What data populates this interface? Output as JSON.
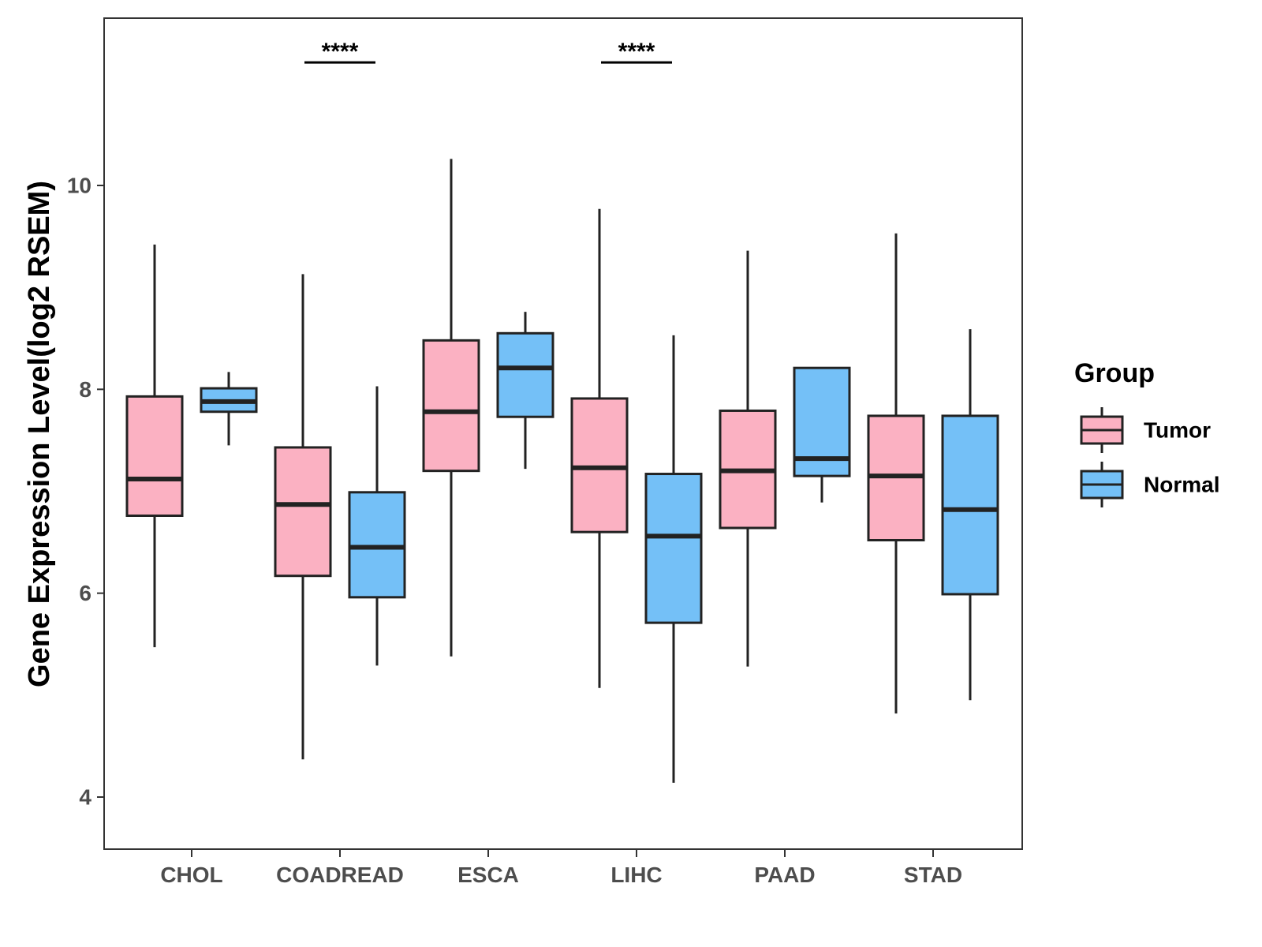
{
  "chart_data": {
    "type": "boxplot",
    "title": "",
    "xlabel": "",
    "ylabel": "Gene Expression Level(log2 RSEM)",
    "ylim": [
      3.5,
      11.7
    ],
    "yticks": [
      4,
      6,
      8,
      10
    ],
    "ytick_labels": [
      "4",
      "6",
      "8",
      "10"
    ],
    "categories": [
      "CHOL",
      "COADREAD",
      "ESCA",
      "LIHC",
      "PAAD",
      "STAD"
    ],
    "legend": {
      "title": "Group",
      "position": "right",
      "entries": [
        "Tumor",
        "Normal"
      ]
    },
    "series": [
      {
        "name": "Tumor",
        "color": "#FBB1C2",
        "boxes": [
          {
            "category": "CHOL",
            "whisker_low": 5.47,
            "q1": 6.76,
            "median": 7.12,
            "q3": 7.93,
            "whisker_high": 9.42
          },
          {
            "category": "COADREAD",
            "whisker_low": 4.37,
            "q1": 6.17,
            "median": 6.87,
            "q3": 7.43,
            "whisker_high": 9.13
          },
          {
            "category": "ESCA",
            "whisker_low": 5.38,
            "q1": 7.2,
            "median": 7.78,
            "q3": 8.48,
            "whisker_high": 10.26
          },
          {
            "category": "LIHC",
            "whisker_low": 5.07,
            "q1": 6.6,
            "median": 7.23,
            "q3": 7.91,
            "whisker_high": 9.77
          },
          {
            "category": "PAAD",
            "whisker_low": 5.28,
            "q1": 6.64,
            "median": 7.2,
            "q3": 7.79,
            "whisker_high": 9.36
          },
          {
            "category": "STAD",
            "whisker_low": 4.82,
            "q1": 6.52,
            "median": 7.15,
            "q3": 7.74,
            "whisker_high": 9.53
          }
        ]
      },
      {
        "name": "Normal",
        "color": "#74C0F7",
        "boxes": [
          {
            "category": "CHOL",
            "whisker_low": 7.45,
            "q1": 7.78,
            "median": 7.88,
            "q3": 8.01,
            "whisker_high": 8.17
          },
          {
            "category": "COADREAD",
            "whisker_low": 5.29,
            "q1": 5.96,
            "median": 6.45,
            "q3": 6.99,
            "whisker_high": 8.03
          },
          {
            "category": "ESCA",
            "whisker_low": 7.22,
            "q1": 7.73,
            "median": 8.21,
            "q3": 8.55,
            "whisker_high": 8.76
          },
          {
            "category": "LIHC",
            "whisker_low": 4.14,
            "q1": 5.71,
            "median": 6.56,
            "q3": 7.17,
            "whisker_high": 8.53
          },
          {
            "category": "PAAD",
            "whisker_low": 6.89,
            "q1": 7.15,
            "median": 7.32,
            "q3": 8.21,
            "whisker_high": 8.21
          },
          {
            "category": "STAD",
            "whisker_low": 4.95,
            "q1": 5.99,
            "median": 6.82,
            "q3": 7.74,
            "whisker_high": 8.59
          }
        ]
      }
    ],
    "significance": [
      {
        "category": "COADREAD",
        "label": "****",
        "y": 11.3
      },
      {
        "category": "LIHC",
        "label": "****",
        "y": 11.3
      }
    ]
  }
}
